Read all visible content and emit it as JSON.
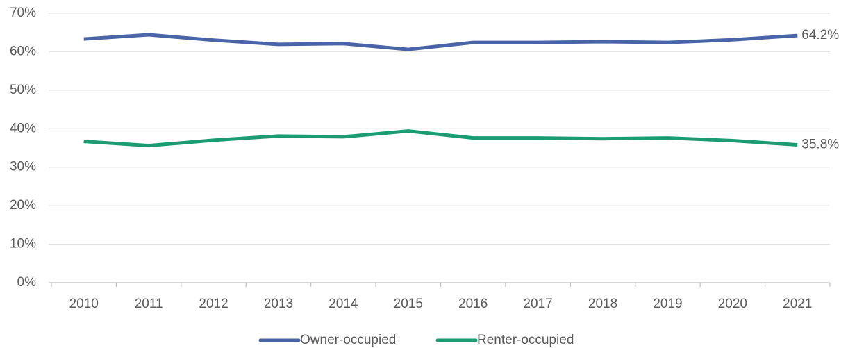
{
  "chart_data": {
    "type": "line",
    "categories": [
      "2010",
      "2011",
      "2012",
      "2013",
      "2014",
      "2015",
      "2016",
      "2017",
      "2018",
      "2019",
      "2020",
      "2021"
    ],
    "series": [
      {
        "name": "Owner-occupied",
        "color": "#4a64a8",
        "values": [
          63.3,
          64.4,
          63.0,
          61.9,
          62.1,
          60.6,
          62.4,
          62.4,
          62.6,
          62.4,
          63.1,
          64.2
        ],
        "value_labels": [
          null,
          null,
          null,
          null,
          null,
          null,
          null,
          null,
          null,
          null,
          null,
          "64.2%"
        ]
      },
      {
        "name": "Renter-occupied",
        "color": "#1a9b72",
        "values": [
          36.7,
          35.6,
          37.0,
          38.1,
          37.9,
          39.4,
          37.6,
          37.6,
          37.4,
          37.6,
          36.9,
          35.8
        ],
        "value_labels": [
          null,
          null,
          null,
          null,
          null,
          null,
          null,
          null,
          null,
          null,
          null,
          "35.8%"
        ]
      }
    ],
    "ylim": [
      0,
      70
    ],
    "yticks": [
      {
        "value": 0,
        "label": "0%"
      },
      {
        "value": 10,
        "label": "10%"
      },
      {
        "value": 20,
        "label": "20%"
      },
      {
        "value": 30,
        "label": "30%"
      },
      {
        "value": 40,
        "label": "40%"
      },
      {
        "value": 50,
        "label": "50%"
      },
      {
        "value": 60,
        "label": "60%"
      },
      {
        "value": 70,
        "label": "70%"
      }
    ],
    "grid": true,
    "legend": "bottom"
  }
}
